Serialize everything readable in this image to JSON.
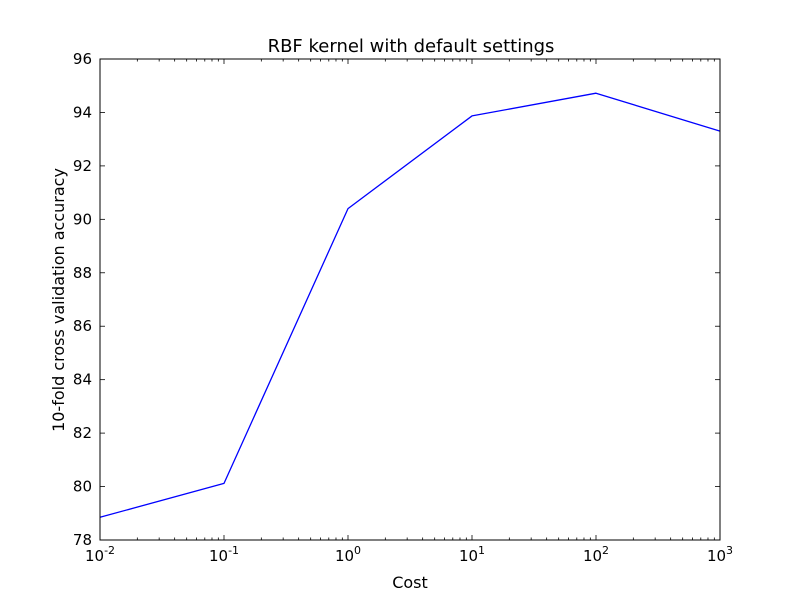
{
  "chart_data": {
    "type": "line",
    "title": "RBF kernel with default settings",
    "xlabel": "Cost",
    "ylabel": "10-fold cross validation accuracy",
    "x_scale": "log",
    "x_ticks": [
      {
        "value": 0.01,
        "base": "10",
        "exp": "-2"
      },
      {
        "value": 0.1,
        "base": "10",
        "exp": "-1"
      },
      {
        "value": 1,
        "base": "10",
        "exp": "0"
      },
      {
        "value": 10,
        "base": "10",
        "exp": "1"
      },
      {
        "value": 100,
        "base": "10",
        "exp": "2"
      },
      {
        "value": 1000,
        "base": "10",
        "exp": "3"
      }
    ],
    "y_ticks": [
      "78",
      "80",
      "82",
      "84",
      "86",
      "88",
      "90",
      "92",
      "94",
      "96"
    ],
    "xlim": [
      0.01,
      1000
    ],
    "ylim": [
      78,
      96
    ],
    "grid": false,
    "line_color": "#0000ff",
    "series": [
      {
        "x": [
          0.01,
          0.1,
          1,
          10,
          100,
          1000
        ],
        "y": [
          78.85,
          80.12,
          90.4,
          93.87,
          94.72,
          93.3
        ]
      }
    ]
  }
}
